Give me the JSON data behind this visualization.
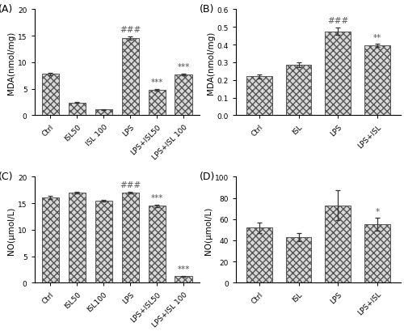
{
  "panels": [
    "A",
    "B",
    "C",
    "D"
  ],
  "A": {
    "categories": [
      "Ctrl",
      "ISL50",
      "ISL 100",
      "LPS",
      "LPS+ISL50",
      "LPS+ISL 100"
    ],
    "values": [
      7.8,
      2.4,
      1.1,
      14.6,
      4.8,
      7.7
    ],
    "errors": [
      0.25,
      0.12,
      0.1,
      0.3,
      0.18,
      0.18
    ],
    "ylabel": "MDA(nmol/mg)",
    "ylim": [
      0,
      20
    ],
    "yticks": [
      0,
      5,
      10,
      15,
      20
    ],
    "ann_hash": {
      "bar": 3,
      "text": "###"
    },
    "ann_stars": [
      {
        "bar": 4,
        "text": "***"
      },
      {
        "bar": 5,
        "text": "***"
      }
    ]
  },
  "B": {
    "categories": [
      "Ctrl",
      "ISL",
      "LPS",
      "LPS+ISL"
    ],
    "values": [
      0.22,
      0.285,
      0.475,
      0.395
    ],
    "errors": [
      0.01,
      0.013,
      0.02,
      0.008
    ],
    "ylabel": "MDA(nmol/mg)",
    "ylim": [
      0,
      0.6
    ],
    "yticks": [
      0.0,
      0.1,
      0.2,
      0.3,
      0.4,
      0.5,
      0.6
    ],
    "ann_hash": {
      "bar": 2,
      "text": "###"
    },
    "ann_stars": [
      {
        "bar": 3,
        "text": "**"
      }
    ]
  },
  "C": {
    "categories": [
      "Ctrl",
      "ISL50",
      "ISL100",
      "LPS",
      "LPS+ISL50",
      "LPS+ISL 100"
    ],
    "values": [
      16.1,
      17.0,
      15.5,
      17.0,
      14.5,
      1.2
    ],
    "errors": [
      0.25,
      0.18,
      0.18,
      0.18,
      0.28,
      0.12
    ],
    "ylabel": "NO(μmol/L)",
    "ylim": [
      0,
      20
    ],
    "yticks": [
      0,
      5,
      10,
      15,
      20
    ],
    "ann_hash": {
      "bar": 3,
      "text": "###"
    },
    "ann_stars": [
      {
        "bar": 4,
        "text": "***"
      },
      {
        "bar": 5,
        "text": "***"
      }
    ]
  },
  "D": {
    "categories": [
      "Ctrl",
      "ISL",
      "LPS",
      "LPS+ISL"
    ],
    "values": [
      52,
      43,
      73,
      55
    ],
    "errors": [
      5,
      4,
      14,
      6
    ],
    "ylabel": "NO(μmol/L)",
    "ylim": [
      0,
      100
    ],
    "yticks": [
      0,
      20,
      40,
      60,
      80,
      100
    ],
    "ann_hash": null,
    "ann_stars": [
      {
        "bar": 3,
        "text": "*"
      }
    ]
  },
  "bar_facecolor": "#d8d8d8",
  "hatch": "xxxx",
  "bar_edgecolor": "#555555",
  "bar_width": 0.65,
  "figure_bg": "#ffffff",
  "axes_bg": "#ffffff",
  "hash_color": "#555555",
  "star_color": "#555555",
  "tick_labelsize": 6.5,
  "axis_labelsize": 7.5,
  "panel_labelsize": 9,
  "annotation_fontsize": 7.5,
  "capsize": 2.5,
  "ecolor": "#333333",
  "elinewidth": 0.9,
  "linewidth_bar": 0.7
}
